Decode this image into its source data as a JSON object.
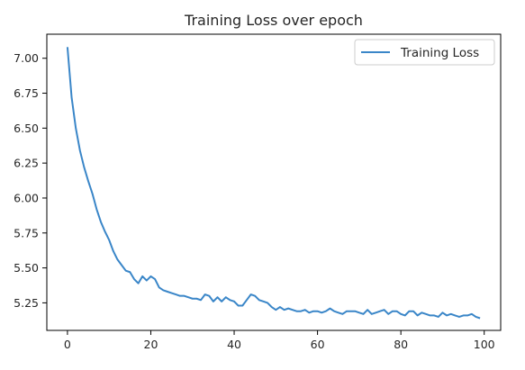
{
  "chart_data": {
    "type": "line",
    "title": "Training Loss over epoch",
    "xlabel": "",
    "ylabel": "",
    "xlim": [
      -4.95,
      103.95
    ],
    "ylim": [
      5.053,
      7.172
    ],
    "xticks": [
      0,
      20,
      40,
      60,
      80,
      100
    ],
    "xtick_labels": [
      "0",
      "20",
      "40",
      "60",
      "80",
      "100"
    ],
    "yticks": [
      5.25,
      5.5,
      5.75,
      6.0,
      6.25,
      6.5,
      6.75,
      7.0
    ],
    "ytick_labels": [
      "5.25",
      "5.50",
      "5.75",
      "6.00",
      "6.25",
      "6.50",
      "6.75",
      "7.00"
    ],
    "grid": false,
    "legend_position": "top-right",
    "colors": {
      "line": "#3a86c8",
      "axis": "#000000",
      "background": "#ffffff"
    },
    "series": [
      {
        "name": "Training Loss",
        "x": [
          0,
          1,
          2,
          3,
          4,
          5,
          6,
          7,
          8,
          9,
          10,
          11,
          12,
          13,
          14,
          15,
          16,
          17,
          18,
          19,
          20,
          21,
          22,
          23,
          24,
          25,
          26,
          27,
          28,
          29,
          30,
          31,
          32,
          33,
          34,
          35,
          36,
          37,
          38,
          39,
          40,
          41,
          42,
          43,
          44,
          45,
          46,
          47,
          48,
          49,
          50,
          51,
          52,
          53,
          54,
          55,
          56,
          57,
          58,
          59,
          60,
          61,
          62,
          63,
          64,
          65,
          66,
          67,
          68,
          69,
          70,
          71,
          72,
          73,
          74,
          75,
          76,
          77,
          78,
          79,
          80,
          81,
          82,
          83,
          84,
          85,
          86,
          87,
          88,
          89,
          90,
          91,
          92,
          93,
          94,
          95,
          96,
          97,
          98,
          99
        ],
        "values": [
          7.08,
          6.72,
          6.5,
          6.34,
          6.22,
          6.12,
          6.03,
          5.92,
          5.83,
          5.76,
          5.7,
          5.62,
          5.56,
          5.52,
          5.48,
          5.47,
          5.42,
          5.39,
          5.44,
          5.41,
          5.44,
          5.42,
          5.36,
          5.34,
          5.33,
          5.32,
          5.31,
          5.3,
          5.3,
          5.29,
          5.28,
          5.28,
          5.27,
          5.31,
          5.3,
          5.26,
          5.29,
          5.26,
          5.29,
          5.27,
          5.26,
          5.23,
          5.23,
          5.27,
          5.31,
          5.3,
          5.27,
          5.26,
          5.25,
          5.22,
          5.2,
          5.22,
          5.2,
          5.21,
          5.2,
          5.19,
          5.19,
          5.2,
          5.18,
          5.19,
          5.19,
          5.18,
          5.19,
          5.21,
          5.19,
          5.18,
          5.17,
          5.19,
          5.19,
          5.19,
          5.18,
          5.17,
          5.2,
          5.17,
          5.18,
          5.19,
          5.2,
          5.17,
          5.19,
          5.19,
          5.17,
          5.16,
          5.19,
          5.19,
          5.16,
          5.18,
          5.17,
          5.16,
          5.16,
          5.15,
          5.18,
          5.16,
          5.17,
          5.16,
          5.15,
          5.16,
          5.16,
          5.17,
          5.15,
          5.14
        ]
      }
    ]
  }
}
